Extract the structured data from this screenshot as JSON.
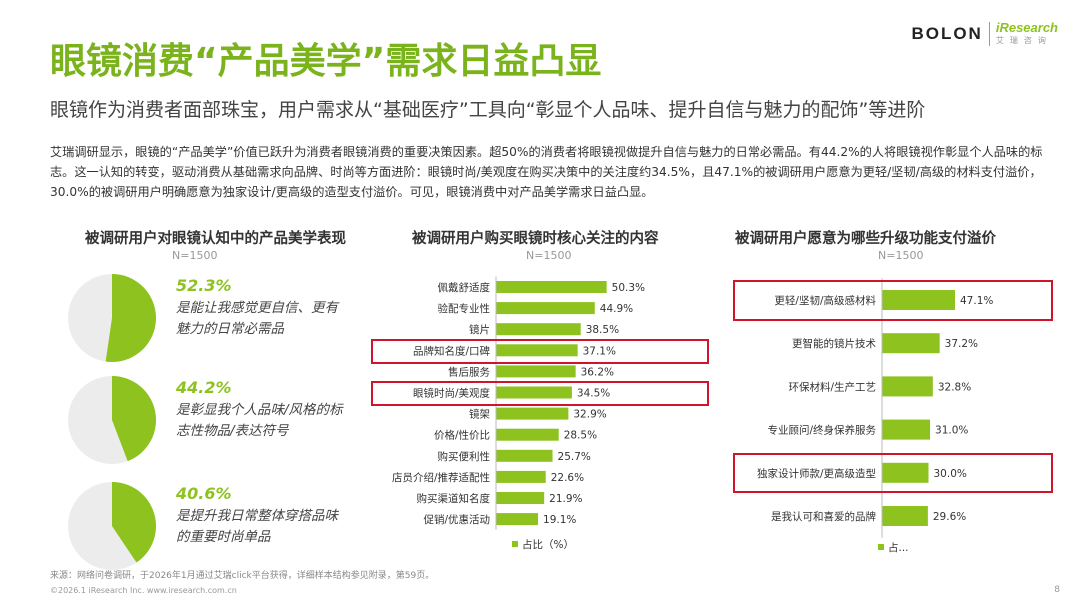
{
  "header": {
    "brand1": "BOLON",
    "brand2": "iResearch",
    "brand2_sub": "艾瑞咨询",
    "title": "眼镜消费“产品美学”需求日益凸显",
    "subtitle": "眼镜作为消费者面部珠宝，用户需求从“基础医疗”工具向“彰显个人品味、提升自信与魅力的配饰”等进阶"
  },
  "intro": "艾瑞调研显示，眼镜的“产品美学”价值已跃升为消费者眼镜消费的重要决策因素。超50%的消费者将眼镜视做提升自信与魅力的日常必需品。有44.2%的人将眼镜视作彰显个人品味的标志。这一认知的转变，驱动消费从基础需求向品牌、时尚等方面进阶：眼镜时尚/美观度在购买决策中的关注度约34.5%，且47.1%的被调研用户愿意为更轻/坚韧/高级的材料支付溢价，30.0%的被调研用户明确愿意为独家设计/更高级的造型支付溢价。可见，眼镜消费中对产品美学需求日益凸显。",
  "colors": {
    "accent": "#8dc21f",
    "pie_bg": "#ececec",
    "highlight": "#d0142a"
  },
  "chart_data": [
    {
      "type": "pie",
      "title": "被调研用户对眼镜认知中的产品美学表现",
      "subtitle": "N=1500",
      "items": [
        {
          "value": 52.3,
          "label": "52.3%",
          "desc": "是能让我感觉更自信、更有魅力的日常必需品"
        },
        {
          "value": 44.2,
          "label": "44.2%",
          "desc": "是彰显我个人品味/风格的标志性物品/表达符号"
        },
        {
          "value": 40.6,
          "label": "40.6%",
          "desc": "是提升我日常整体穿搭品味的重要时尚单品"
        }
      ]
    },
    {
      "type": "bar",
      "orientation": "horizontal",
      "title": "被调研用户购买眼镜时核心关注的内容",
      "subtitle": "N=1500",
      "series_name": "占比（%）",
      "categories": [
        "佩戴舒适度",
        "验配专业性",
        "镜片",
        "品牌知名度/口碑",
        "售后服务",
        "眼镜时尚/美观度",
        "镜架",
        "价格/性价比",
        "购买便利性",
        "店员介绍/推荐适配性",
        "购买渠道知名度",
        "促销/优惠活动"
      ],
      "values": [
        50.3,
        44.9,
        38.5,
        37.1,
        36.2,
        34.5,
        32.9,
        28.5,
        25.7,
        22.6,
        21.9,
        19.1
      ],
      "labels": [
        "50.3%",
        "44.9%",
        "38.5%",
        "37.1%",
        "36.2%",
        "34.5%",
        "32.9%",
        "28.5%",
        "25.7%",
        "22.6%",
        "21.9%",
        "19.1%"
      ],
      "highlighted": [
        3,
        5
      ]
    },
    {
      "type": "bar",
      "orientation": "horizontal",
      "title": "被调研用户愿意为哪些升级功能支付溢价",
      "subtitle": "N=1500",
      "series_name": "占...",
      "categories": [
        "更轻/坚韧/高级感材料",
        "更智能的镜片技术",
        "环保材料/生产工艺",
        "专业顾问/终身保养服务",
        "独家设计师款/更高级造型",
        "是我认可和喜爱的品牌"
      ],
      "values": [
        47.1,
        37.2,
        32.8,
        31.0,
        30.0,
        29.6
      ],
      "labels": [
        "47.1%",
        "37.2%",
        "32.8%",
        "31.0%",
        "30.0%",
        "29.6%"
      ],
      "highlighted": [
        0,
        4
      ]
    }
  ],
  "footer": {
    "source": "来源：网络问卷调研，于2026年1月通过艾瑞click平台获得，详细样本结构参见附录，第59页。",
    "copyright": "©2026.1 iResearch Inc.                     www.iresearch.com.cn",
    "page": "8"
  }
}
